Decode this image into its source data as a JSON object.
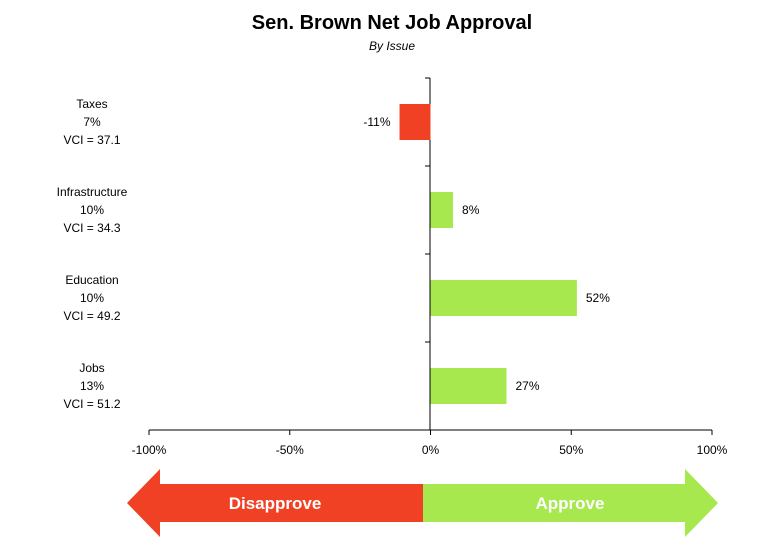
{
  "chart_data": {
    "type": "bar",
    "orientation": "horizontal",
    "title": "Sen. Brown Net Job Approval",
    "subtitle": "By Issue",
    "categories": [
      {
        "name": "Taxes",
        "share": "7%",
        "vci": "VCI = 37.1"
      },
      {
        "name": "Infrastructure",
        "share": "10%",
        "vci": "VCI = 34.3"
      },
      {
        "name": "Education",
        "share": "10%",
        "vci": "VCI = 49.2"
      },
      {
        "name": "Jobs",
        "share": "13%",
        "vci": "VCI = 51.2"
      }
    ],
    "values": [
      -11,
      8,
      52,
      27
    ],
    "data_labels": [
      "-11%",
      "8%",
      "52%",
      "27%"
    ],
    "xlim": [
      -100,
      100
    ],
    "xticks": [
      -100,
      -50,
      0,
      50,
      100
    ],
    "xtick_labels": [
      "-100%",
      "-50%",
      "0%",
      "50%",
      "100%"
    ],
    "grid": false,
    "colors": {
      "negative": "#f04124",
      "positive": "#a6e84e",
      "axis": "#000000"
    }
  },
  "arrow": {
    "left_label": "Disapprove",
    "right_label": "Approve",
    "left_color": "#f04124",
    "right_color": "#a6e84e"
  }
}
